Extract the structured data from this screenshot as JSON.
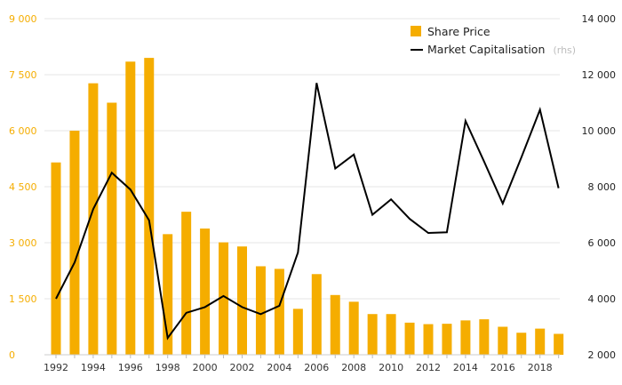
{
  "chart_data": {
    "type": "bar",
    "x": [
      1992,
      1993,
      1994,
      1995,
      1996,
      1997,
      1998,
      1999,
      2000,
      2001,
      2002,
      2003,
      2004,
      2005,
      2006,
      2007,
      2008,
      2009,
      2010,
      2011,
      2012,
      2013,
      2014,
      2015,
      2016,
      2017,
      2018,
      2019
    ],
    "series": [
      {
        "name": "Share Price",
        "type": "bar",
        "axis": "left",
        "values": [
          5150,
          6000,
          7270,
          6750,
          7850,
          7950,
          3230,
          3830,
          3380,
          3010,
          2900,
          2370,
          2300,
          1230,
          2160,
          1600,
          1420,
          1090,
          1090,
          860,
          820,
          830,
          920,
          950,
          750,
          590,
          700,
          560
        ]
      },
      {
        "name": "Market Capitalisation",
        "name_suffix": "(rhs)",
        "type": "line",
        "axis": "right",
        "values": [
          4000,
          5300,
          7200,
          8500,
          7900,
          6800,
          2600,
          3500,
          3700,
          4100,
          3700,
          3450,
          3750,
          5650,
          11700,
          8650,
          9150,
          7000,
          7550,
          6850,
          6350,
          6370,
          10350,
          8900,
          7400,
          9050,
          10750,
          7950
        ]
      }
    ],
    "y_left": {
      "range": [
        0,
        9000
      ],
      "ticks": [
        "0",
        "1 500",
        "3 000",
        "4 500",
        "6 000",
        "7 500",
        "9 000"
      ]
    },
    "y_right": {
      "range": [
        2000,
        14000
      ],
      "ticks": [
        "2 000",
        "4 000",
        "6 000",
        "8 000",
        "10 000",
        "12 000",
        "14 000"
      ]
    },
    "x_ticks": [
      "1992",
      "1994",
      "1996",
      "1998",
      "2000",
      "2002",
      "2004",
      "2006",
      "2008",
      "2010",
      "2012",
      "2014",
      "2016",
      "2018"
    ],
    "grid": true,
    "legend_position": "top-right",
    "colors": {
      "bar": "#f5ad00",
      "line": "#000000",
      "grid": "#e6e6e6",
      "left_axis_text": "#f5ad00",
      "right_axis_text": "#222222"
    }
  }
}
